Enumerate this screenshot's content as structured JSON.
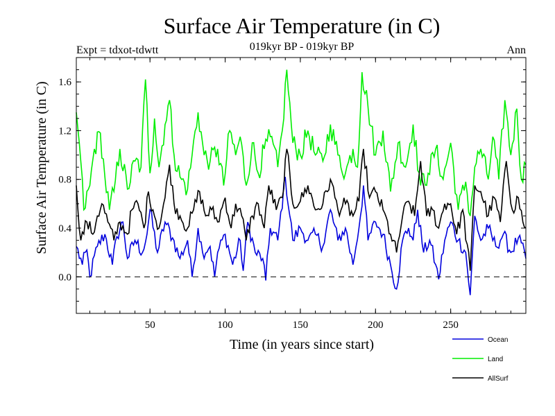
{
  "chart_data": {
    "type": "line",
    "title": "Surface Air Temperature (in C)",
    "subtitle": "019kyr BP - 019kyr BP",
    "left_label": "Expt = tdxot-tdwtt",
    "right_label": "Ann",
    "xlabel": "Time (in years since start)",
    "ylabel": "Surface Air Temperature (in C)",
    "xlim": [
      1,
      300
    ],
    "ylim": [
      -0.3,
      1.8
    ],
    "x_ticks": [
      50,
      100,
      150,
      200,
      250
    ],
    "y_ticks": [
      0.0,
      0.4,
      0.8,
      1.2,
      1.6
    ],
    "y_tick_labels": [
      "0.0",
      "0.4",
      "0.8",
      "1.2",
      "1.6"
    ],
    "zero_line": {
      "y": 0.0,
      "style": "dashed"
    },
    "legend_placement": "bottom-right, below plot",
    "series": [
      {
        "name": "Ocean",
        "color": "#0000dd",
        "keypoints": [
          [
            1,
            0.25
          ],
          [
            5,
            0.1
          ],
          [
            8,
            0.22
          ],
          [
            10,
            0.0
          ],
          [
            15,
            0.25
          ],
          [
            20,
            0.35
          ],
          [
            25,
            0.1
          ],
          [
            28,
            0.33
          ],
          [
            32,
            0.45
          ],
          [
            35,
            0.15
          ],
          [
            40,
            0.3
          ],
          [
            45,
            0.2
          ],
          [
            48,
            0.35
          ],
          [
            50,
            0.55
          ],
          [
            55,
            0.2
          ],
          [
            60,
            0.45
          ],
          [
            65,
            0.32
          ],
          [
            70,
            0.15
          ],
          [
            75,
            0.3
          ],
          [
            78,
            0.0
          ],
          [
            82,
            0.4
          ],
          [
            85,
            0.2
          ],
          [
            90,
            0.25
          ],
          [
            93,
            0.0
          ],
          [
            95,
            0.2
          ],
          [
            100,
            0.35
          ],
          [
            105,
            0.1
          ],
          [
            110,
            0.3
          ],
          [
            112,
            0.05
          ],
          [
            115,
            0.45
          ],
          [
            120,
            0.2
          ],
          [
            125,
            0.15
          ],
          [
            127,
            -0.03
          ],
          [
            130,
            0.4
          ],
          [
            135,
            0.3
          ],
          [
            140,
            0.82
          ],
          [
            145,
            0.3
          ],
          [
            150,
            0.4
          ],
          [
            155,
            0.3
          ],
          [
            160,
            0.35
          ],
          [
            165,
            0.25
          ],
          [
            170,
            0.55
          ],
          [
            175,
            0.3
          ],
          [
            180,
            0.4
          ],
          [
            185,
            0.1
          ],
          [
            190,
            0.5
          ],
          [
            192,
            0.75
          ],
          [
            195,
            0.3
          ],
          [
            200,
            0.45
          ],
          [
            205,
            0.35
          ],
          [
            210,
            0.1
          ],
          [
            214,
            -0.1
          ],
          [
            218,
            0.3
          ],
          [
            222,
            0.4
          ],
          [
            225,
            0.3
          ],
          [
            228,
            0.55
          ],
          [
            232,
            0.2
          ],
          [
            236,
            0.3
          ],
          [
            240,
            0.1
          ],
          [
            242,
            -0.02
          ],
          [
            246,
            0.3
          ],
          [
            250,
            0.45
          ],
          [
            255,
            0.3
          ],
          [
            260,
            0.2
          ],
          [
            263,
            -0.15
          ],
          [
            266,
            0.5
          ],
          [
            270,
            0.3
          ],
          [
            275,
            0.4
          ],
          [
            280,
            0.25
          ],
          [
            285,
            0.35
          ],
          [
            290,
            0.2
          ],
          [
            295,
            0.32
          ],
          [
            300,
            0.15
          ]
        ]
      },
      {
        "name": "Land",
        "color": "#00ee00",
        "keypoints": [
          [
            1,
            1.35
          ],
          [
            3,
            1.1
          ],
          [
            6,
            0.55
          ],
          [
            10,
            0.75
          ],
          [
            13,
            1.05
          ],
          [
            17,
            1.18
          ],
          [
            20,
            0.82
          ],
          [
            23,
            0.55
          ],
          [
            26,
            0.7
          ],
          [
            30,
            1.05
          ],
          [
            35,
            0.72
          ],
          [
            40,
            0.95
          ],
          [
            44,
            0.9
          ],
          [
            47,
            1.62
          ],
          [
            50,
            0.85
          ],
          [
            53,
            1.3
          ],
          [
            56,
            0.9
          ],
          [
            60,
            1.25
          ],
          [
            63,
            1.45
          ],
          [
            66,
            1.0
          ],
          [
            70,
            0.82
          ],
          [
            75,
            0.72
          ],
          [
            78,
            1.0
          ],
          [
            82,
            1.35
          ],
          [
            86,
            1.0
          ],
          [
            90,
            0.95
          ],
          [
            95,
            1.05
          ],
          [
            99,
            0.75
          ],
          [
            103,
            1.2
          ],
          [
            107,
            1.0
          ],
          [
            110,
            1.15
          ],
          [
            114,
            0.75
          ],
          [
            118,
            1.1
          ],
          [
            122,
            0.85
          ],
          [
            126,
            1.05
          ],
          [
            130,
            1.15
          ],
          [
            135,
            0.9
          ],
          [
            138,
            1.2
          ],
          [
            141,
            1.7
          ],
          [
            145,
            1.1
          ],
          [
            150,
            1.0
          ],
          [
            155,
            1.2
          ],
          [
            160,
            1.0
          ],
          [
            165,
            0.95
          ],
          [
            170,
            1.25
          ],
          [
            175,
            1.0
          ],
          [
            180,
            0.85
          ],
          [
            185,
            1.05
          ],
          [
            188,
            0.9
          ],
          [
            191,
            1.68
          ],
          [
            195,
            1.4
          ],
          [
            200,
            1.0
          ],
          [
            205,
            1.2
          ],
          [
            210,
            0.7
          ],
          [
            215,
            1.1
          ],
          [
            220,
            0.9
          ],
          [
            225,
            1.25
          ],
          [
            230,
            0.75
          ],
          [
            235,
            0.85
          ],
          [
            240,
            1.05
          ],
          [
            245,
            0.8
          ],
          [
            250,
            1.1
          ],
          [
            255,
            0.55
          ],
          [
            260,
            0.78
          ],
          [
            263,
            0.5
          ],
          [
            266,
            0.9
          ],
          [
            270,
            1.05
          ],
          [
            275,
            0.8
          ],
          [
            278,
            1.15
          ],
          [
            282,
            0.8
          ],
          [
            286,
            1.45
          ],
          [
            290,
            1.0
          ],
          [
            294,
            1.38
          ],
          [
            297,
            0.8
          ],
          [
            300,
            0.92
          ]
        ]
      },
      {
        "name": "AllSurf",
        "color": "#000000",
        "keypoints": [
          [
            1,
            0.75
          ],
          [
            4,
            0.3
          ],
          [
            8,
            0.45
          ],
          [
            12,
            0.35
          ],
          [
            15,
            0.5
          ],
          [
            18,
            0.6
          ],
          [
            22,
            0.45
          ],
          [
            26,
            0.3
          ],
          [
            30,
            0.45
          ],
          [
            35,
            0.35
          ],
          [
            38,
            0.55
          ],
          [
            42,
            0.6
          ],
          [
            46,
            0.4
          ],
          [
            49,
            0.7
          ],
          [
            52,
            0.55
          ],
          [
            56,
            0.4
          ],
          [
            60,
            0.65
          ],
          [
            63,
            0.92
          ],
          [
            66,
            0.6
          ],
          [
            70,
            0.5
          ],
          [
            75,
            0.4
          ],
          [
            79,
            0.55
          ],
          [
            83,
            0.7
          ],
          [
            87,
            0.5
          ],
          [
            91,
            0.55
          ],
          [
            95,
            0.45
          ],
          [
            100,
            0.65
          ],
          [
            104,
            0.4
          ],
          [
            107,
            0.6
          ],
          [
            111,
            0.5
          ],
          [
            114,
            0.3
          ],
          [
            118,
            0.5
          ],
          [
            122,
            0.6
          ],
          [
            126,
            0.4
          ],
          [
            129,
            0.75
          ],
          [
            134,
            0.55
          ],
          [
            138,
            0.65
          ],
          [
            141,
            1.05
          ],
          [
            145,
            0.6
          ],
          [
            150,
            0.62
          ],
          [
            155,
            0.75
          ],
          [
            160,
            0.55
          ],
          [
            165,
            0.6
          ],
          [
            170,
            0.8
          ],
          [
            175,
            0.55
          ],
          [
            180,
            0.6
          ],
          [
            185,
            0.5
          ],
          [
            189,
            0.62
          ],
          [
            192,
            1.05
          ],
          [
            196,
            0.65
          ],
          [
            200,
            0.7
          ],
          [
            205,
            0.55
          ],
          [
            210,
            0.35
          ],
          [
            214,
            0.2
          ],
          [
            218,
            0.5
          ],
          [
            222,
            0.62
          ],
          [
            226,
            0.5
          ],
          [
            230,
            0.95
          ],
          [
            234,
            0.5
          ],
          [
            238,
            0.55
          ],
          [
            242,
            0.4
          ],
          [
            246,
            0.6
          ],
          [
            250,
            0.6
          ],
          [
            254,
            0.35
          ],
          [
            258,
            0.55
          ],
          [
            263,
            0.05
          ],
          [
            266,
            0.75
          ],
          [
            270,
            0.7
          ],
          [
            275,
            0.5
          ],
          [
            279,
            0.65
          ],
          [
            283,
            0.45
          ],
          [
            287,
            0.95
          ],
          [
            291,
            0.55
          ],
          [
            295,
            0.65
          ],
          [
            298,
            0.45
          ],
          [
            300,
            0.4
          ]
        ]
      }
    ]
  }
}
